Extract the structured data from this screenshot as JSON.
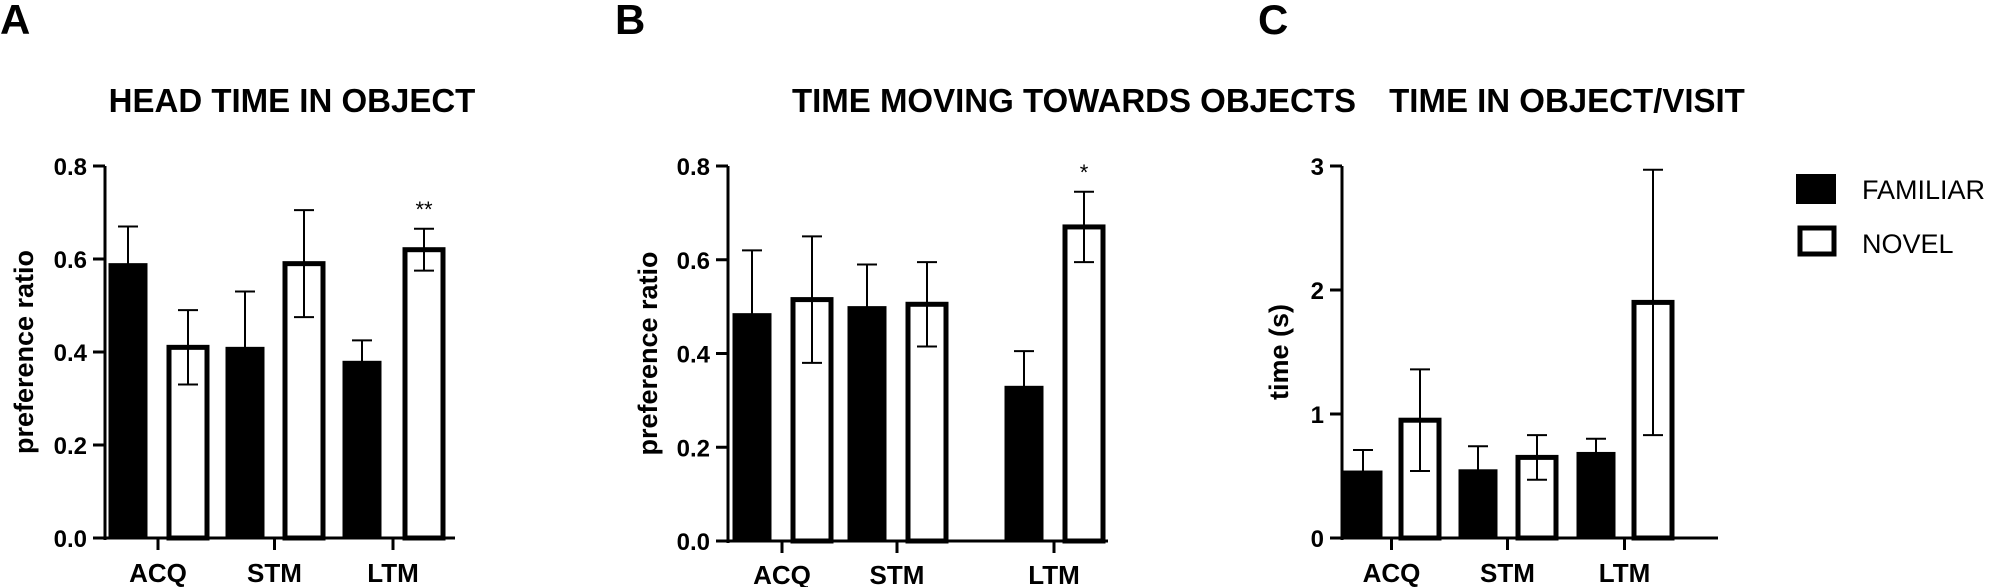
{
  "chart_data": [
    {
      "type": "bar",
      "panel": "A",
      "title": "HEAD TIME IN OBJECT",
      "xlabel": "",
      "ylabel": "preference ratio",
      "categories": [
        "ACQ",
        "STM",
        "LTM"
      ],
      "ylim": [
        0,
        0.8
      ],
      "yticks": [
        "0.0",
        "0.2",
        "0.4",
        "0.6",
        "0.8"
      ],
      "ytick_values": [
        0,
        0.2,
        0.4,
        0.6,
        0.8
      ],
      "series": [
        {
          "name": "FAMILIAR",
          "values": [
            0.59,
            0.41,
            0.38
          ],
          "errors": [
            0.08,
            0.12,
            0.045
          ]
        },
        {
          "name": "NOVEL",
          "values": [
            0.41,
            0.59,
            0.62
          ],
          "errors": [
            0.08,
            0.115,
            0.045
          ]
        }
      ],
      "annotations": [
        {
          "category": "LTM",
          "series": "NOVEL",
          "text": "**"
        }
      ]
    },
    {
      "type": "bar",
      "panel": "B",
      "title": "TIME MOVING TOWARDS OBJECTS",
      "xlabel": "",
      "ylabel": "preference ratio",
      "categories": [
        "ACQ",
        "STM",
        "LTM"
      ],
      "ylim": [
        0,
        0.8
      ],
      "yticks": [
        "0.0",
        "0.2",
        "0.4",
        "0.6",
        "0.8"
      ],
      "ytick_values": [
        0,
        0.2,
        0.4,
        0.6,
        0.8
      ],
      "series": [
        {
          "name": "FAMILIAR",
          "values": [
            0.485,
            0.5,
            0.33
          ],
          "errors": [
            0.135,
            0.09,
            0.075
          ]
        },
        {
          "name": "NOVEL",
          "values": [
            0.515,
            0.505,
            0.67
          ],
          "errors": [
            0.135,
            0.09,
            0.075
          ]
        }
      ],
      "annotations": [
        {
          "category": "LTM",
          "series": "NOVEL",
          "text": "*"
        }
      ]
    },
    {
      "type": "bar",
      "panel": "C",
      "title": "TIME IN OBJECT/VISIT",
      "xlabel": "",
      "ylabel": "time (s)",
      "categories": [
        "ACQ",
        "STM",
        "LTM"
      ],
      "ylim": [
        0,
        3
      ],
      "yticks": [
        "0",
        "1",
        "2",
        "3"
      ],
      "ytick_values": [
        0,
        1,
        2,
        3
      ],
      "series": [
        {
          "name": "FAMILIAR",
          "values": [
            0.54,
            0.55,
            0.69
          ],
          "errors": [
            0.17,
            0.19,
            0.11
          ]
        },
        {
          "name": "NOVEL",
          "values": [
            0.95,
            0.65,
            1.9
          ],
          "errors": [
            0.41,
            0.18,
            1.07
          ]
        }
      ],
      "annotations": []
    }
  ],
  "legend": {
    "position": "right",
    "items": [
      {
        "label": "FAMILIAR",
        "style": "filled",
        "color": "#000000"
      },
      {
        "label": "NOVEL",
        "style": "open",
        "color": "#ffffff"
      }
    ]
  },
  "colors": {
    "familiar": "#000000",
    "novel": "#ffffff",
    "stroke": "#000000"
  }
}
